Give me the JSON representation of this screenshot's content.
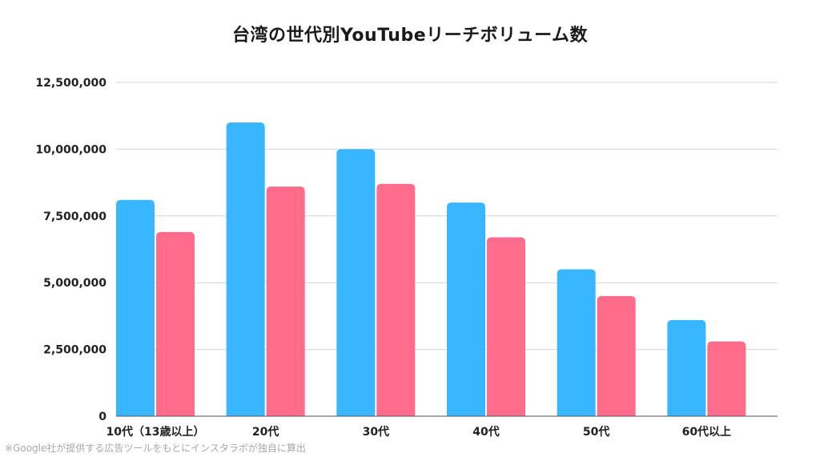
{
  "chart_data": {
    "type": "bar",
    "title": "台湾の世代別YouTubeリーチボリューム数",
    "categories": [
      "10代（13歳以上）",
      "20代",
      "30代",
      "40代",
      "50代",
      "60代以上"
    ],
    "series": [
      {
        "color": "#38b6ff",
        "values": [
          8100000,
          11000000,
          10000000,
          8000000,
          5500000,
          3600000
        ]
      },
      {
        "color": "#ff6b8a",
        "values": [
          6900000,
          8600000,
          8700000,
          6700000,
          4500000,
          2800000
        ]
      }
    ],
    "yticks": [
      "0",
      "2,500,000",
      "5,000,000",
      "7,500,000",
      "10,000,000",
      "12,500,000"
    ],
    "ylim": [
      0,
      12500000
    ],
    "grid": true,
    "legend": "none",
    "xlabel": "",
    "ylabel": ""
  },
  "footnote": "※Google社が提供する広告ツールをもとにインスタラボが独自に算出"
}
